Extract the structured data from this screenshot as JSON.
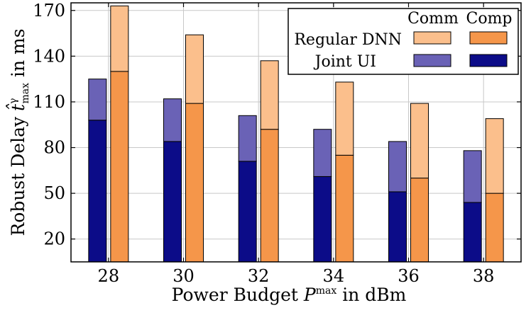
{
  "chart_data": {
    "type": "bar",
    "stacked": true,
    "categories": [
      "28",
      "30",
      "32",
      "34",
      "36",
      "38"
    ],
    "xlabel": {
      "prefix": "Power Budget ",
      "symbol": "P",
      "sup": "max",
      "suffix": " in dBm"
    },
    "ylabel": {
      "prefix": "Robust Delay ",
      "symbol": "t̂",
      "sup": "γ",
      "sub": "max",
      "suffix": " in ms"
    },
    "ylim": [
      5,
      175
    ],
    "yticks": [
      20,
      50,
      80,
      110,
      140,
      170
    ],
    "grid": true,
    "legend": {
      "placement": "top-right",
      "column_headers": [
        "Comm",
        "Comp"
      ],
      "rows": [
        "Regular DNN",
        "Joint UI"
      ]
    },
    "series": [
      {
        "name": "Joint UI",
        "comp": [
          98,
          84,
          71,
          61,
          51,
          44
        ],
        "comm": [
          27,
          28,
          30,
          31,
          33,
          34
        ],
        "colors": {
          "comp": "#0c0c88",
          "comm": "#6a62b6"
        }
      },
      {
        "name": "Regular DNN",
        "comp": [
          130,
          109,
          92,
          75,
          60,
          50
        ],
        "comm": [
          43,
          45,
          45,
          48,
          49,
          49
        ],
        "colors": {
          "comp": "#f5964a",
          "comm": "#fbbf8c"
        }
      }
    ]
  }
}
